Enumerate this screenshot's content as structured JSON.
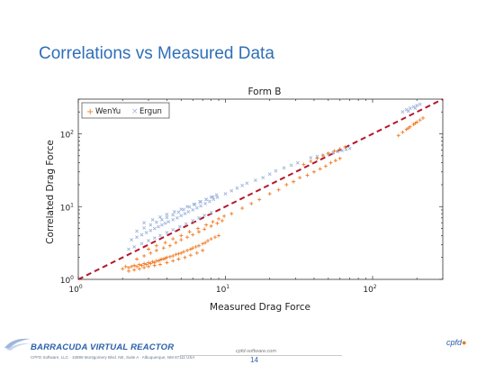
{
  "slide": {
    "title": "Correlations vs Measured Data",
    "footer_logo": "BARRACUDA VIRTUAL REACTOR",
    "footer_company": "CPFD Software, LLC  ·  10899 Montgomery Blvd. NE, Suite A  ·  Albuquerque, NM 87111 USA",
    "footer_web": "cpfd-software.com",
    "page_number": "14",
    "brand_mark_text": "cpfd"
  },
  "colors": {
    "title": "#2e6fb8",
    "wenyu": "#f07c24",
    "ergun": "#9fb6dc",
    "reference_line": "#b2182b"
  },
  "chart_data": {
    "type": "scatter",
    "title": "Form B",
    "xlabel": "Measured Drag Force",
    "ylabel": "Correlated Drag Force",
    "xscale": "log",
    "yscale": "log",
    "xlim": [
      1,
      300
    ],
    "ylim": [
      1,
      300
    ],
    "xticks": [
      {
        "value": 1,
        "base": "10",
        "exp": "0"
      },
      {
        "value": 10,
        "base": "10",
        "exp": "1"
      },
      {
        "value": 100,
        "base": "10",
        "exp": "2"
      }
    ],
    "yticks": [
      {
        "value": 1,
        "base": "10",
        "exp": "0"
      },
      {
        "value": 10,
        "base": "10",
        "exp": "1"
      },
      {
        "value": 100,
        "base": "10",
        "exp": "2"
      }
    ],
    "grid": false,
    "legend": "top-left",
    "reference_line": {
      "type": "y=x",
      "style": "dashed"
    },
    "series": [
      {
        "name": "WenYu",
        "marker": "+",
        "points": [
          [
            2.0,
            1.4
          ],
          [
            2.1,
            1.5
          ],
          [
            2.2,
            1.45
          ],
          [
            2.3,
            1.5
          ],
          [
            2.4,
            1.55
          ],
          [
            2.5,
            1.5
          ],
          [
            2.6,
            1.6
          ],
          [
            2.7,
            1.55
          ],
          [
            2.8,
            1.65
          ],
          [
            2.9,
            1.6
          ],
          [
            3.0,
            1.7
          ],
          [
            3.1,
            1.65
          ],
          [
            3.2,
            1.75
          ],
          [
            3.3,
            1.7
          ],
          [
            3.4,
            1.8
          ],
          [
            3.5,
            1.8
          ],
          [
            3.6,
            1.85
          ],
          [
            3.7,
            1.9
          ],
          [
            3.8,
            1.9
          ],
          [
            3.9,
            1.95
          ],
          [
            4.0,
            2.0
          ],
          [
            4.2,
            2.05
          ],
          [
            4.4,
            2.1
          ],
          [
            4.6,
            2.2
          ],
          [
            4.8,
            2.25
          ],
          [
            5.0,
            2.3
          ],
          [
            5.2,
            2.4
          ],
          [
            5.5,
            2.5
          ],
          [
            5.8,
            2.6
          ],
          [
            6.0,
            2.7
          ],
          [
            6.3,
            2.8
          ],
          [
            6.6,
            2.9
          ],
          [
            7.0,
            3.1
          ],
          [
            7.3,
            3.2
          ],
          [
            7.6,
            3.4
          ],
          [
            8.0,
            3.6
          ],
          [
            8.5,
            3.8
          ],
          [
            9.0,
            4.0
          ],
          [
            2.2,
            1.3
          ],
          [
            2.4,
            1.35
          ],
          [
            2.6,
            1.4
          ],
          [
            2.8,
            1.45
          ],
          [
            3.0,
            1.5
          ],
          [
            3.3,
            1.55
          ],
          [
            3.6,
            1.6
          ],
          [
            4.0,
            1.7
          ],
          [
            4.4,
            1.8
          ],
          [
            4.8,
            1.9
          ],
          [
            5.3,
            2.0
          ],
          [
            5.8,
            2.15
          ],
          [
            6.4,
            2.3
          ],
          [
            7.0,
            2.5
          ],
          [
            2.5,
            1.9
          ],
          [
            2.8,
            2.1
          ],
          [
            3.1,
            2.3
          ],
          [
            3.4,
            2.5
          ],
          [
            3.8,
            2.7
          ],
          [
            4.2,
            2.9
          ],
          [
            4.6,
            3.2
          ],
          [
            5.0,
            3.5
          ],
          [
            5.5,
            3.8
          ],
          [
            6.0,
            4.1
          ],
          [
            6.6,
            4.5
          ],
          [
            7.2,
            4.9
          ],
          [
            8.0,
            5.4
          ],
          [
            8.8,
            5.9
          ],
          [
            9.5,
            6.4
          ],
          [
            3.0,
            2.6
          ],
          [
            3.4,
            2.9
          ],
          [
            3.9,
            3.2
          ],
          [
            4.4,
            3.6
          ],
          [
            5.0,
            4.0
          ],
          [
            5.7,
            4.5
          ],
          [
            6.5,
            5.0
          ],
          [
            7.4,
            5.6
          ],
          [
            8.2,
            6.2
          ],
          [
            9.0,
            6.8
          ],
          [
            9.8,
            7.4
          ],
          [
            11,
            8
          ],
          [
            13,
            9.5
          ],
          [
            15,
            11
          ],
          [
            17,
            12.5
          ],
          [
            20,
            15
          ],
          [
            23,
            17
          ],
          [
            26,
            20
          ],
          [
            29,
            22
          ],
          [
            32,
            25
          ],
          [
            36,
            27
          ],
          [
            40,
            30
          ],
          [
            44,
            33
          ],
          [
            48,
            36
          ],
          [
            52,
            40
          ],
          [
            56,
            43
          ],
          [
            60,
            46
          ],
          [
            34,
            38
          ],
          [
            38,
            42
          ],
          [
            42,
            46
          ],
          [
            46,
            50
          ],
          [
            50,
            54
          ],
          [
            55,
            58
          ],
          [
            60,
            62
          ],
          [
            65,
            66
          ],
          [
            150,
            95
          ],
          [
            160,
            105
          ],
          [
            170,
            115
          ],
          [
            180,
            125
          ],
          [
            190,
            135
          ],
          [
            200,
            145
          ],
          [
            210,
            155
          ],
          [
            220,
            165
          ],
          [
            175,
            120
          ],
          [
            195,
            140
          ]
        ]
      },
      {
        "name": "Ergun",
        "marker": "x",
        "points": [
          [
            2.3,
            3.5
          ],
          [
            2.5,
            3.8
          ],
          [
            2.7,
            4.1
          ],
          [
            2.9,
            4.4
          ],
          [
            3.1,
            4.7
          ],
          [
            3.3,
            5.0
          ],
          [
            3.5,
            5.3
          ],
          [
            3.7,
            5.6
          ],
          [
            3.9,
            5.9
          ],
          [
            4.1,
            6.2
          ],
          [
            4.4,
            6.6
          ],
          [
            4.7,
            7.0
          ],
          [
            5.0,
            7.5
          ],
          [
            5.3,
            8.0
          ],
          [
            5.6,
            8.5
          ],
          [
            6.0,
            9.0
          ],
          [
            6.4,
            9.6
          ],
          [
            6.8,
            10.2
          ],
          [
            7.3,
            11
          ],
          [
            7.8,
            11.8
          ],
          [
            8.3,
            12.6
          ],
          [
            8.8,
            13.4
          ],
          [
            2.5,
            4.6
          ],
          [
            2.8,
            5.1
          ],
          [
            3.1,
            5.6
          ],
          [
            3.4,
            6.1
          ],
          [
            3.7,
            6.6
          ],
          [
            4.0,
            7.1
          ],
          [
            4.4,
            7.7
          ],
          [
            4.8,
            8.4
          ],
          [
            5.2,
            9.1
          ],
          [
            5.7,
            9.9
          ],
          [
            6.2,
            10.7
          ],
          [
            6.8,
            11.6
          ],
          [
            7.4,
            12.5
          ],
          [
            8.0,
            13.5
          ],
          [
            8.7,
            14.5
          ],
          [
            2.2,
            2.6
          ],
          [
            2.4,
            2.8
          ],
          [
            2.7,
            3.1
          ],
          [
            3.0,
            3.4
          ],
          [
            3.3,
            3.7
          ],
          [
            3.6,
            4.0
          ],
          [
            4.0,
            4.4
          ],
          [
            4.4,
            4.8
          ],
          [
            4.9,
            5.3
          ],
          [
            5.4,
            5.8
          ],
          [
            6.0,
            6.4
          ],
          [
            6.6,
            7.0
          ],
          [
            7.2,
            7.6
          ],
          [
            8.0,
            8.3
          ],
          [
            2.8,
            6.0
          ],
          [
            3.2,
            6.6
          ],
          [
            3.6,
            7.2
          ],
          [
            4.0,
            7.8
          ],
          [
            4.5,
            8.5
          ],
          [
            5.0,
            9.2
          ],
          [
            5.5,
            10
          ],
          [
            6.1,
            10.8
          ],
          [
            6.7,
            11.7
          ],
          [
            7.4,
            12.6
          ],
          [
            8.2,
            13.6
          ],
          [
            10,
            15
          ],
          [
            11,
            16.5
          ],
          [
            12,
            18
          ],
          [
            13,
            19.5
          ],
          [
            14,
            21
          ],
          [
            16,
            23
          ],
          [
            18,
            25
          ],
          [
            20,
            28
          ],
          [
            22,
            31
          ],
          [
            25,
            34
          ],
          [
            28,
            37
          ],
          [
            31,
            40
          ],
          [
            38,
            47
          ],
          [
            42,
            49
          ],
          [
            46,
            51
          ],
          [
            50,
            53
          ],
          [
            54,
            55
          ],
          [
            58,
            57
          ],
          [
            62,
            59
          ],
          [
            66,
            61
          ],
          [
            70,
            63
          ],
          [
            160,
            200
          ],
          [
            170,
            215
          ],
          [
            180,
            225
          ],
          [
            190,
            235
          ],
          [
            200,
            245
          ],
          [
            210,
            255
          ],
          [
            175,
            205
          ],
          [
            195,
            225
          ]
        ]
      }
    ]
  }
}
